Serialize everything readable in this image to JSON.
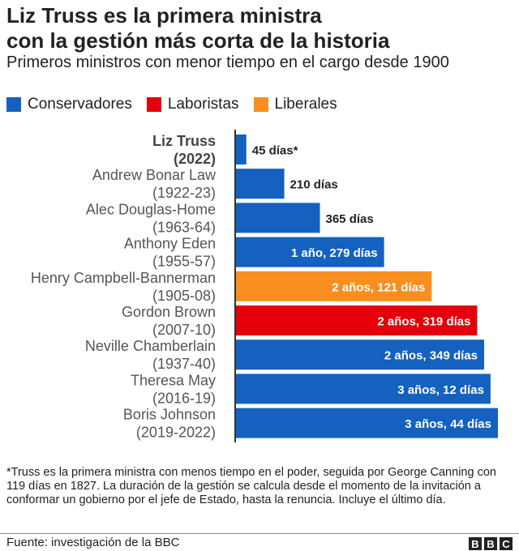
{
  "title_line1": "Liz Truss es la primera ministra",
  "title_line2": "con la gestión más corta de la historia",
  "subtitle": "Primeros ministros con menor tiempo en el cargo desde 1900",
  "legend": [
    {
      "label": "Conservadores",
      "color": "#1461c0"
    },
    {
      "label": "Laboristas",
      "color": "#e4000b"
    },
    {
      "label": "Liberales",
      "color": "#fa8e1e"
    }
  ],
  "chart_data": {
    "type": "bar",
    "orientation": "horizontal",
    "unit": "días",
    "categories": [
      {
        "name": "Liz Truss",
        "years": "(2022)",
        "party": "Conservadores",
        "highlight": true
      },
      {
        "name": "Andrew Bonar Law",
        "years": "(1922-23)",
        "party": "Conservadores"
      },
      {
        "name": "Alec Douglas-Home",
        "years": "(1963-64)",
        "party": "Conservadores"
      },
      {
        "name": "Anthony Eden",
        "years": "(1955-57)",
        "party": "Conservadores"
      },
      {
        "name": "Henry Campbell-Bannerman",
        "years": "(1905-08)",
        "party": "Liberales"
      },
      {
        "name": "Gordon Brown",
        "years": "(2007-10)",
        "party": "Laboristas"
      },
      {
        "name": "Neville Chamberlain",
        "years": "(1937-40)",
        "party": "Conservadores"
      },
      {
        "name": "Theresa May",
        "years": "(2016-19)",
        "party": "Conservadores"
      },
      {
        "name": "Boris Johnson",
        "years": "(2019-2022)",
        "party": "Conservadores"
      }
    ],
    "values": [
      45,
      210,
      365,
      644,
      851,
      1049,
      1079,
      1107,
      1139
    ],
    "data_labels": [
      "45 días*",
      "210 días",
      "365 días",
      "1 año, 279 días",
      "2 años, 121 días",
      "2 años, 319 días",
      "2 años, 349 días",
      "3 años, 12 días",
      "3 años, 44 días"
    ],
    "colors": {
      "Conservadores": "#1461c0",
      "Laboristas": "#e4000b",
      "Liberales": "#fa8e1e"
    }
  },
  "note": "*Truss es la primera ministra con menos tiempo en el poder, seguida por George Canning con 119 días en 1827. La duración de la gestión se calcula desde el momento de la invitación a conformar un gobierno por el jefe de Estado, hasta la renuncia. Incluye el último día.",
  "source": "Fuente: investigación de la BBC",
  "logo": "BBC"
}
